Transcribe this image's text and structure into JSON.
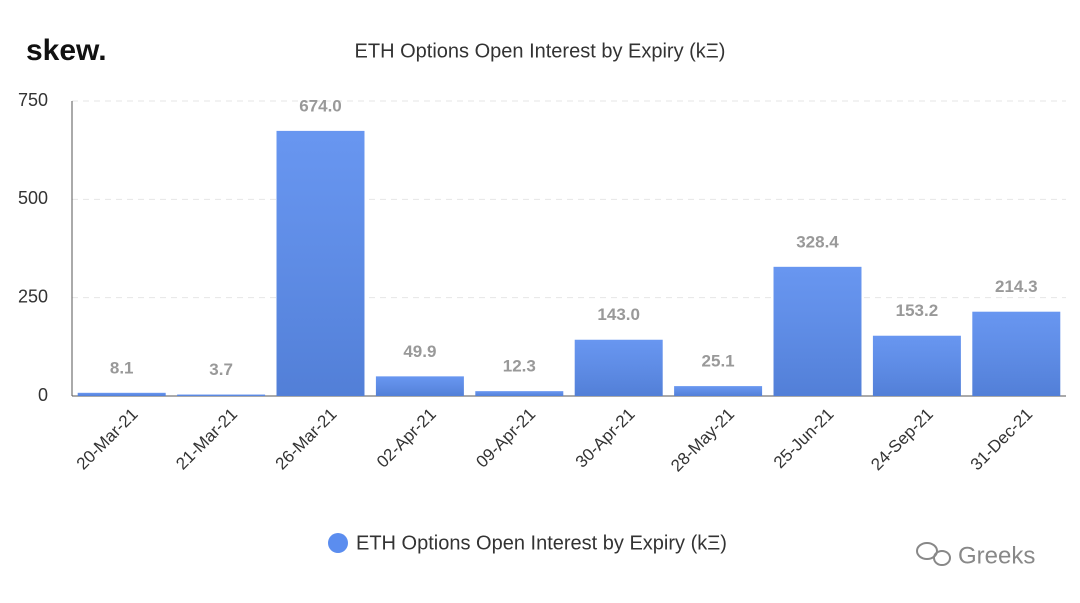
{
  "chart_data": {
    "type": "bar",
    "brand": "skew.",
    "title": "ETH Options Open Interest by Expiry (kΞ)",
    "categories": [
      "20-Mar-21",
      "21-Mar-21",
      "26-Mar-21",
      "02-Apr-21",
      "09-Apr-21",
      "30-Apr-21",
      "28-May-21",
      "25-Jun-21",
      "24-Sep-21",
      "31-Dec-21"
    ],
    "series": [
      {
        "name": "ETH Options Open Interest by Expiry (kΞ)",
        "color": "#5b8def",
        "values": [
          8.1,
          3.7,
          674.0,
          49.9,
          12.3,
          143.0,
          25.1,
          328.4,
          153.2,
          214.3
        ],
        "value_labels": [
          "8.1",
          "3.7",
          "674.0",
          "49.9",
          "12.3",
          "143.0",
          "25.1",
          "328.4",
          "153.2",
          "214.3"
        ]
      }
    ],
    "ylim": [
      0,
      750
    ],
    "yticks": [
      0,
      250,
      500,
      750
    ],
    "grid": true,
    "legend": "bottom",
    "watermark": "Greeks"
  }
}
